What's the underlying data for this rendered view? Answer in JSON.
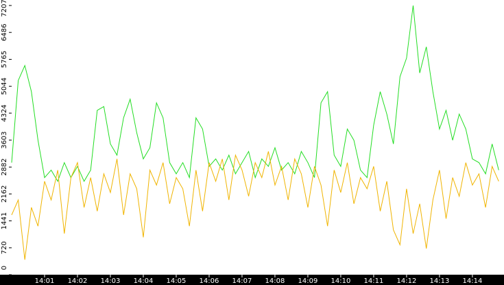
{
  "chart_data": {
    "type": "line",
    "x": [
      0,
      0.2,
      0.4,
      0.6,
      0.8,
      1,
      1.2,
      1.4,
      1.6,
      1.8,
      2,
      2.2,
      2.4,
      2.6,
      2.8,
      3,
      3.2,
      3.4,
      3.6,
      3.8,
      4,
      4.2,
      4.4,
      4.6,
      4.8,
      5,
      5.2,
      5.4,
      5.6,
      5.8,
      6,
      6.2,
      6.4,
      6.6,
      6.8,
      7,
      7.2,
      7.4,
      7.6,
      7.8,
      8,
      8.2,
      8.4,
      8.6,
      8.8,
      9,
      9.2,
      9.4,
      9.6,
      9.8,
      10,
      10.2,
      10.4,
      10.6,
      10.8,
      11,
      11.2,
      11.4,
      11.6,
      11.8,
      12,
      12.2,
      12.4,
      12.6,
      12.8,
      13,
      13.2,
      13.4,
      13.6,
      13.8,
      14,
      14.2,
      14.4,
      14.6,
      14.8
    ],
    "series": [
      {
        "color": "#22dd22",
        "values": [
          3000,
          5200,
          5600,
          4900,
          3600,
          2600,
          2800,
          2500,
          3000,
          2600,
          2900,
          2500,
          2800,
          4400,
          4500,
          3500,
          3200,
          4200,
          4700,
          3800,
          3100,
          3400,
          4600,
          4200,
          3000,
          2700,
          3000,
          2600,
          4200,
          3900,
          2900,
          3100,
          2800,
          3200,
          2700,
          3000,
          3300,
          2600,
          3100,
          2900,
          3400,
          2800,
          3000,
          2700,
          3300,
          3000,
          2600,
          4600,
          4900,
          3200,
          2900,
          3900,
          3600,
          2800,
          2600,
          4000,
          4900,
          4300,
          3500,
          5300,
          5800,
          7207,
          5400,
          6100,
          4900,
          3900,
          4400,
          3600,
          4300,
          3900,
          3100,
          3000,
          2700,
          3500,
          2800
        ]
      },
      {
        "color": "#f0b400",
        "values": [
          1600,
          2000,
          400,
          1800,
          1300,
          2500,
          2000,
          2800,
          1100,
          2600,
          3000,
          1800,
          2600,
          1700,
          2700,
          2200,
          3100,
          1600,
          2700,
          2300,
          1000,
          2800,
          2400,
          3000,
          1900,
          2600,
          2300,
          1300,
          2800,
          1700,
          3000,
          2500,
          3100,
          2000,
          3200,
          2800,
          2100,
          3000,
          2600,
          3300,
          2400,
          2900,
          2000,
          3100,
          2700,
          1800,
          2900,
          2400,
          1300,
          2800,
          2200,
          3000,
          1900,
          2600,
          2300,
          2900,
          1700,
          2500,
          1200,
          800,
          2300,
          1100,
          1900,
          700,
          2000,
          2800,
          1500,
          2600,
          2100,
          3000,
          2400,
          2700,
          1800,
          2900,
          2500
        ]
      }
    ],
    "xlim": [
      0,
      14.96
    ],
    "xticks": [
      {
        "value": 1,
        "label": "14:01"
      },
      {
        "value": 2,
        "label": "14:02"
      },
      {
        "value": 3,
        "label": "14:03"
      },
      {
        "value": 4,
        "label": "14:04"
      },
      {
        "value": 5,
        "label": "14:05"
      },
      {
        "value": 6,
        "label": "14:06"
      },
      {
        "value": 7,
        "label": "14:07"
      },
      {
        "value": 8,
        "label": "14:08"
      },
      {
        "value": 9,
        "label": "14:09"
      },
      {
        "value": 10,
        "label": "14:10"
      },
      {
        "value": 11,
        "label": "14:11"
      },
      {
        "value": 12,
        "label": "14:12"
      },
      {
        "value": 13,
        "label": "14:13"
      },
      {
        "value": 14,
        "label": "14:14"
      }
    ],
    "ylim": [
      0,
      7207
    ],
    "yticks": [
      0,
      720,
      1441,
      2162,
      2882,
      3603,
      4324,
      5044,
      5765,
      6486,
      7207
    ]
  }
}
